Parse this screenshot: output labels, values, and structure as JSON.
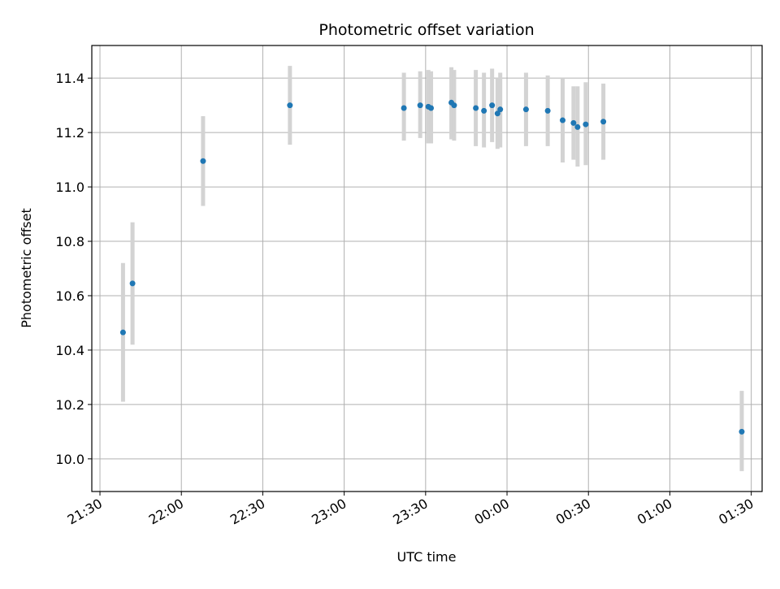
{
  "chart_data": {
    "type": "scatter",
    "title": "Photometric offset variation",
    "xlabel": "UTC time",
    "ylabel": "Photometric offset",
    "x_axis_type": "time",
    "xlim": [
      "21:27",
      "01:34"
    ],
    "ylim": [
      9.88,
      11.52
    ],
    "grid": true,
    "x_ticks": [
      "21:30",
      "22:00",
      "22:30",
      "23:00",
      "23:30",
      "00:00",
      "00:30",
      "01:00",
      "01:30"
    ],
    "y_ticks": [
      "10.0",
      "10.2",
      "10.4",
      "10.6",
      "10.8",
      "11.0",
      "11.2",
      "11.4"
    ],
    "point_color": "#1f77b4",
    "errorbar_color": "#d3d3d3",
    "series": [
      {
        "points": [
          {
            "x": "21:38:30",
            "y": 10.465,
            "ylo": 10.21,
            "yhi": 10.72
          },
          {
            "x": "21:42:00",
            "y": 10.645,
            "ylo": 10.42,
            "yhi": 10.87
          },
          {
            "x": "22:08:00",
            "y": 11.095,
            "ylo": 10.93,
            "yhi": 11.26
          },
          {
            "x": "22:40:00",
            "y": 11.3,
            "ylo": 11.155,
            "yhi": 11.445
          },
          {
            "x": "23:22:00",
            "y": 11.29,
            "ylo": 11.17,
            "yhi": 11.42
          },
          {
            "x": "23:28:00",
            "y": 11.3,
            "ylo": 11.18,
            "yhi": 11.425
          },
          {
            "x": "23:31:00",
            "y": 11.295,
            "ylo": 11.16,
            "yhi": 11.43
          },
          {
            "x": "23:32:00",
            "y": 11.29,
            "ylo": 11.16,
            "yhi": 11.425
          },
          {
            "x": "23:39:30",
            "y": 11.31,
            "ylo": 11.175,
            "yhi": 11.44
          },
          {
            "x": "23:40:30",
            "y": 11.3,
            "ylo": 11.17,
            "yhi": 11.43
          },
          {
            "x": "23:48:30",
            "y": 11.29,
            "ylo": 11.15,
            "yhi": 11.43
          },
          {
            "x": "23:51:30",
            "y": 11.28,
            "ylo": 11.145,
            "yhi": 11.42
          },
          {
            "x": "23:54:30",
            "y": 11.3,
            "ylo": 11.165,
            "yhi": 11.435
          },
          {
            "x": "23:56:30",
            "y": 11.27,
            "ylo": 11.14,
            "yhi": 11.4
          },
          {
            "x": "23:57:30",
            "y": 11.285,
            "ylo": 11.145,
            "yhi": 11.42
          },
          {
            "x": "00:07:00",
            "y": 11.285,
            "ylo": 11.15,
            "yhi": 11.42
          },
          {
            "x": "00:15:00",
            "y": 11.28,
            "ylo": 11.15,
            "yhi": 11.41
          },
          {
            "x": "00:20:30",
            "y": 11.245,
            "ylo": 11.09,
            "yhi": 11.4
          },
          {
            "x": "00:24:30",
            "y": 11.235,
            "ylo": 11.1,
            "yhi": 11.37
          },
          {
            "x": "00:26:00",
            "y": 11.22,
            "ylo": 11.075,
            "yhi": 11.37
          },
          {
            "x": "00:29:00",
            "y": 11.23,
            "ylo": 11.08,
            "yhi": 11.385
          },
          {
            "x": "00:35:30",
            "y": 11.24,
            "ylo": 11.1,
            "yhi": 11.38
          },
          {
            "x": "01:26:30",
            "y": 10.1,
            "ylo": 9.955,
            "yhi": 10.25
          }
        ]
      }
    ]
  }
}
